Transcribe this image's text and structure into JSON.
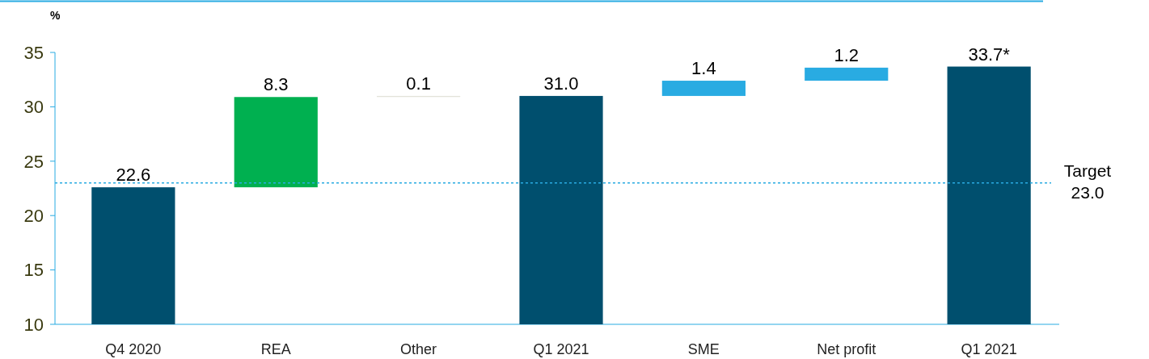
{
  "chart_data": {
    "type": "bar",
    "ylabel": "%",
    "categories": [
      "Q4 2020",
      "REA",
      "Other",
      "Q1 2021",
      "SME",
      "Net profit",
      "Q1 2021"
    ],
    "values": [
      12.6,
      8.3,
      0.1,
      21.0,
      1.4,
      1.2,
      23.7
    ],
    "base": [
      10,
      22.6,
      30.9,
      10,
      31.0,
      32.4,
      10
    ],
    "value_labels": [
      "22.6",
      "8.3",
      "0.1",
      "31.0",
      "1.4",
      "1.2",
      "33.7*"
    ],
    "colors": [
      "#004f6e",
      "#00b050",
      "#e3e3da",
      "#004f6e",
      "#29abe2",
      "#29abe2",
      "#004f6e"
    ],
    "ylim": [
      10,
      35
    ],
    "yticks": [
      10,
      15,
      20,
      25,
      30,
      35
    ],
    "ref_lines": [
      {
        "axis": "y",
        "value": 23.0,
        "label": "Target\n23.0",
        "color": "#29abe2",
        "line_style": "dotted"
      }
    ],
    "grid": false
  }
}
